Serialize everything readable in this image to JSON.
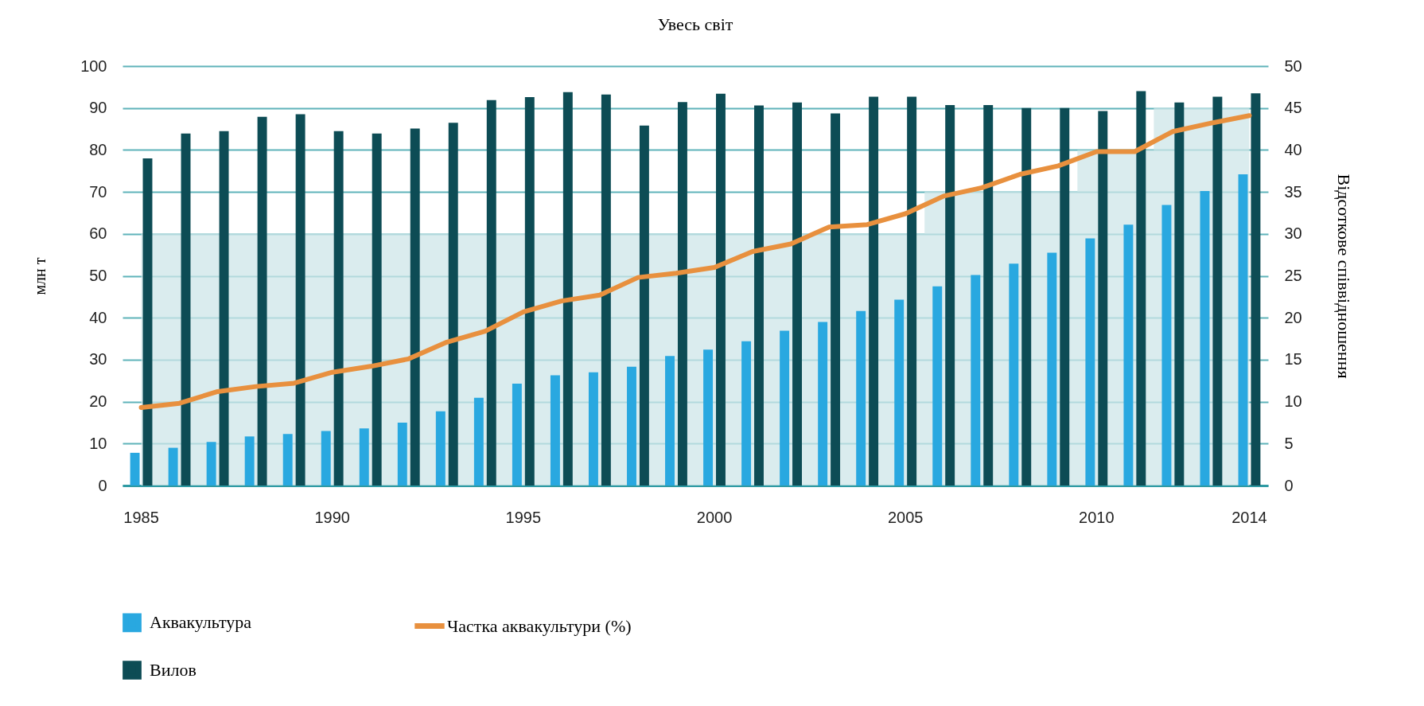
{
  "chart_data": {
    "type": "bar",
    "title": "Увесь світ",
    "ylabel": "млн т",
    "y2label": "Відсоткове співвідношення",
    "categories": [
      "1985",
      null,
      null,
      null,
      null,
      "1990",
      null,
      null,
      null,
      null,
      "1995",
      null,
      null,
      null,
      null,
      "2000",
      null,
      null,
      null,
      null,
      "2005",
      null,
      null,
      null,
      null,
      "2010",
      null,
      null,
      null,
      "2014"
    ],
    "series": [
      {
        "type": "area",
        "color": "#cde6e8",
        "values": [
          60,
          60,
          60,
          60,
          60,
          60,
          60,
          60,
          60,
          60,
          60,
          60,
          60,
          60,
          60,
          60,
          60,
          60,
          60,
          60,
          60,
          70,
          70,
          70,
          70,
          80,
          80,
          90,
          90,
          90
        ]
      },
      {
        "name": "Аквакультура",
        "color": "#29a8e0",
        "values": [
          7.8,
          9.0,
          10.4,
          11.7,
          12.3,
          13.0,
          13.6,
          15.0,
          17.7,
          20.9,
          24.3,
          26.3,
          27.0,
          28.3,
          30.9,
          32.4,
          34.4,
          36.9,
          39.0,
          41.6,
          44.3,
          47.5,
          50.2,
          52.9,
          55.5,
          58.9,
          62.2,
          66.9,
          70.2,
          74.2
        ]
      },
      {
        "name": "Вилов",
        "color": "#0d4c55",
        "values": [
          78.0,
          83.9,
          84.5,
          87.9,
          88.5,
          84.5,
          83.9,
          85.1,
          86.5,
          91.9,
          92.6,
          93.8,
          93.2,
          85.8,
          91.4,
          93.4,
          90.6,
          91.3,
          88.7,
          92.7,
          92.7,
          90.7,
          90.7,
          90.0,
          90.0,
          89.3,
          94.0,
          91.3,
          92.7,
          93.5
        ]
      },
      {
        "name": "Частка аквакультури (%)",
        "type": "line",
        "axis": "y2",
        "color": "#e8903e",
        "values": [
          9.3,
          9.8,
          11.2,
          11.8,
          12.2,
          13.5,
          14.2,
          15.1,
          17.1,
          18.4,
          20.7,
          22.0,
          22.7,
          24.8,
          25.3,
          26.0,
          27.9,
          28.8,
          30.8,
          31.1,
          32.4,
          34.5,
          35.5,
          37.1,
          38.1,
          39.8,
          39.8,
          42.2,
          43.2,
          44.1
        ]
      }
    ],
    "ylim": [
      0,
      100
    ],
    "yticks": [
      0,
      10,
      20,
      30,
      40,
      50,
      60,
      70,
      80,
      90,
      100
    ],
    "y2lim": [
      0,
      50
    ],
    "y2ticks": [
      0,
      5,
      10,
      15,
      20,
      25,
      30,
      35,
      40,
      45,
      50
    ],
    "grid": "y",
    "legend": "bottom",
    "marker": "none",
    "line_style": "solid"
  }
}
